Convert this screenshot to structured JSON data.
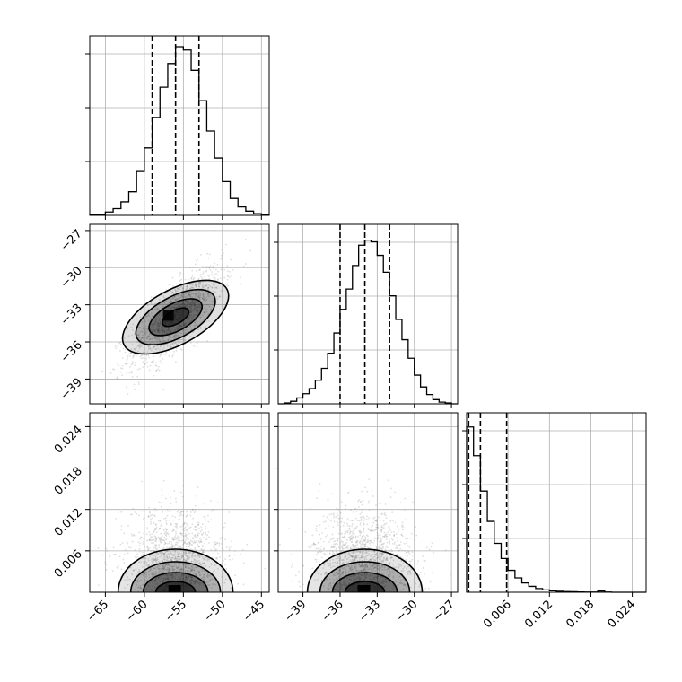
{
  "chart_data": {
    "type": "corner",
    "parameter_count": 3,
    "grid": true,
    "style": {
      "line_color": "#000000",
      "grid_color": "#b0b0b0",
      "density_color": "#000000",
      "sample_color": "#7f7f7f"
    },
    "parameters": [
      {
        "range": [
          -67,
          -44
        ],
        "ticks": [
          -65,
          -60,
          -55,
          -50,
          -45
        ],
        "tick_labels": [
          "−65",
          "−60",
          "−55",
          "−50",
          "−45"
        ],
        "mean": -56.0,
        "sd": 3.0,
        "quantiles": [
          -59.0,
          -56.0,
          -53.0
        ]
      },
      {
        "range": [
          -41,
          -26.5
        ],
        "ticks": [
          -39,
          -36,
          -33,
          -30,
          -27
        ],
        "tick_labels": [
          "−39",
          "−36",
          "−33",
          "−30",
          "−27"
        ],
        "mean": -34.0,
        "sd": 2.0,
        "quantiles": [
          -36.0,
          -34.0,
          -32.0
        ]
      },
      {
        "range": [
          0,
          0.026
        ],
        "ticks": [
          0.006,
          0.012,
          0.018,
          0.024
        ],
        "tick_labels": [
          "0.006",
          "0.012",
          "0.018",
          "0.024"
        ],
        "mean": 0.0,
        "sd": 0.0,
        "quantiles": [
          0.0003,
          0.002,
          0.0058
        ]
      }
    ],
    "histograms": [
      {
        "param": 0,
        "bin_edges": [
          -67,
          -66,
          -65,
          -64,
          -63,
          -62,
          -61,
          -60,
          -59,
          -58,
          -57,
          -56,
          -55,
          -54,
          -53,
          -52,
          -51,
          -50,
          -49,
          -48,
          -47,
          -46,
          -45,
          -44
        ],
        "heights": [
          0.005,
          0.005,
          0.02,
          0.04,
          0.08,
          0.14,
          0.26,
          0.4,
          0.58,
          0.76,
          0.9,
          1.0,
          0.98,
          0.86,
          0.68,
          0.5,
          0.34,
          0.2,
          0.1,
          0.05,
          0.025,
          0.01,
          0.005
        ]
      },
      {
        "param": 1,
        "bin_edges": [
          -41,
          -40.5,
          -40,
          -39.5,
          -39,
          -38.5,
          -38,
          -37.5,
          -37,
          -36.5,
          -36,
          -35.5,
          -35,
          -34.5,
          -34,
          -33.5,
          -33,
          -32.5,
          -32,
          -31.5,
          -31,
          -30.5,
          -30,
          -29.5,
          -29,
          -28.5,
          -28,
          -27.5,
          -27,
          -26.5
        ],
        "heights": [
          0,
          0.005,
          0.015,
          0.035,
          0.06,
          0.09,
          0.14,
          0.21,
          0.3,
          0.42,
          0.56,
          0.68,
          0.82,
          0.94,
          0.97,
          0.96,
          0.88,
          0.78,
          0.64,
          0.5,
          0.38,
          0.27,
          0.17,
          0.1,
          0.055,
          0.025,
          0.01,
          0.005,
          0
        ]
      },
      {
        "param": 2,
        "bin_edges": [
          0,
          0.001,
          0.002,
          0.003,
          0.004,
          0.005,
          0.006,
          0.007,
          0.008,
          0.009,
          0.01,
          0.011,
          0.012,
          0.013,
          0.014,
          0.015,
          0.016,
          0.017,
          0.018,
          0.019,
          0.02,
          0.021,
          0.022,
          0.023,
          0.024,
          0.025,
          0.026
        ],
        "heights": [
          0.98,
          0.81,
          0.6,
          0.42,
          0.29,
          0.2,
          0.13,
          0.085,
          0.055,
          0.035,
          0.022,
          0.014,
          0.009,
          0.006,
          0.004,
          0.003,
          0.002,
          0.0015,
          0.001,
          0.007,
          0.001,
          0,
          0,
          0,
          0,
          0
        ]
      }
    ],
    "joint_2d": [
      {
        "x_param": 0,
        "y_param": 1,
        "correlation": 0.75,
        "contour_levels_sigma": [
          0.5,
          1.0,
          1.5,
          2.0
        ]
      },
      {
        "x_param": 0,
        "y_param": 2,
        "correlation": 0.0,
        "contour_levels_sigma": [
          0.5,
          1.0,
          1.5,
          2.0
        ]
      },
      {
        "x_param": 1,
        "y_param": 2,
        "correlation": 0.0,
        "contour_levels_sigma": [
          0.5,
          1.0,
          1.5,
          2.0
        ]
      }
    ]
  }
}
